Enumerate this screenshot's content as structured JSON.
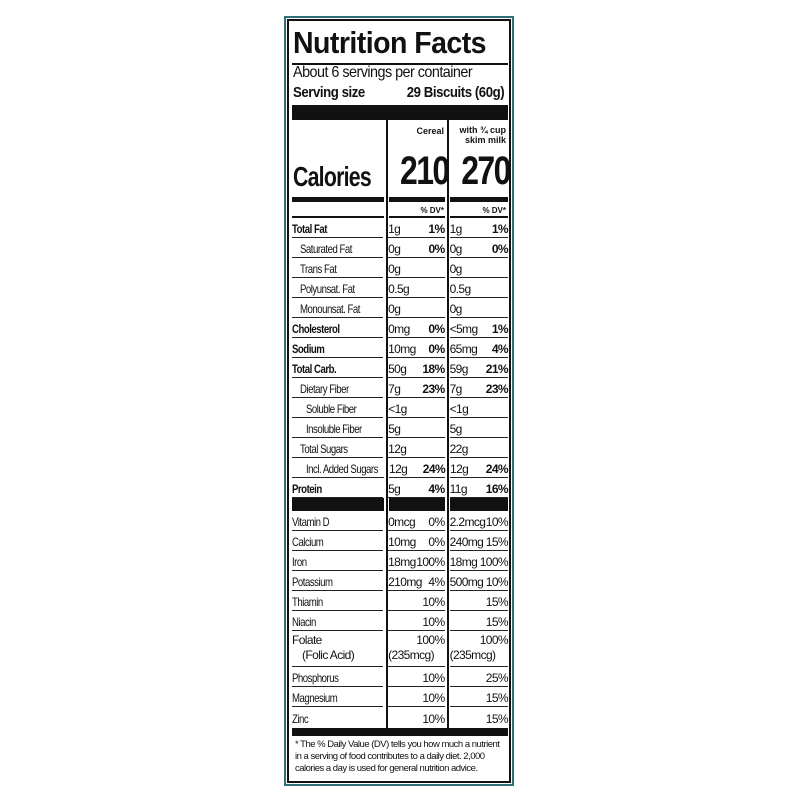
{
  "label": {
    "title": "Nutrition Facts",
    "servings_per_container": "About 6 servings per container",
    "serving_size_label": "Serving size",
    "serving_size_value": "29 Biscuits (60g)",
    "columns": [
      "Cereal",
      "with ¾ cup skim milk"
    ],
    "calories_label": "Calories",
    "calories": [
      "210",
      "270"
    ],
    "dv_header": "% DV*",
    "nutrients": [
      {
        "name": "Total Fat",
        "bold": true,
        "indent": 0,
        "cereal": "1g",
        "cereal_dv": "1%",
        "milk": "1g",
        "milk_dv": "1%"
      },
      {
        "name": "Saturated Fat",
        "indent": 1,
        "cereal": "0g",
        "cereal_dv": "0%",
        "milk": "0g",
        "milk_dv": "0%"
      },
      {
        "name": "Trans Fat",
        "indent": 1,
        "cereal": "0g",
        "cereal_dv": "",
        "milk": "0g",
        "milk_dv": ""
      },
      {
        "name": "Polyunsat. Fat",
        "indent": 1,
        "cereal": "0.5g",
        "cereal_dv": "",
        "milk": "0.5g",
        "milk_dv": ""
      },
      {
        "name": "Monounsat. Fat",
        "indent": 1,
        "cereal": "0g",
        "cereal_dv": "",
        "milk": "0g",
        "milk_dv": ""
      },
      {
        "name": "Cholesterol",
        "bold": true,
        "indent": 0,
        "cereal": "0mg",
        "cereal_dv": "0%",
        "milk": "<5mg",
        "milk_dv": "1%"
      },
      {
        "name": "Sodium",
        "bold": true,
        "indent": 0,
        "cereal": "10mg",
        "cereal_dv": "0%",
        "milk": "65mg",
        "milk_dv": "4%"
      },
      {
        "name": "Total Carb.",
        "bold": true,
        "indent": 0,
        "cereal": "50g",
        "cereal_dv": "18%",
        "milk": "59g",
        "milk_dv": "21%"
      },
      {
        "name": "Dietary Fiber",
        "indent": 1,
        "cereal": "7g",
        "cereal_dv": "23%",
        "milk": "7g",
        "milk_dv": "23%"
      },
      {
        "name": "Soluble Fiber",
        "indent": 2,
        "cereal": "<1g",
        "cereal_dv": "",
        "milk": "<1g",
        "milk_dv": ""
      },
      {
        "name": "Insoluble Fiber",
        "indent": 2,
        "cereal": "5g",
        "cereal_dv": "",
        "milk": "5g",
        "milk_dv": ""
      },
      {
        "name": "Total Sugars",
        "indent": 1,
        "cereal": "12g",
        "cereal_dv": "",
        "milk": "22g",
        "milk_dv": ""
      },
      {
        "name": "Incl. Added Sugars",
        "indent": 2,
        "cereal": "12g",
        "cereal_dv": "24%",
        "milk": "12g",
        "milk_dv": "24%"
      },
      {
        "name": "Protein",
        "bold": true,
        "indent": 0,
        "cereal": "5g",
        "cereal_dv": "4%",
        "milk": "11g",
        "milk_dv": "16%"
      }
    ],
    "vitamins": [
      {
        "name": "Vitamin D",
        "cereal": "0mcg",
        "cereal_dv": "0%",
        "milk": "2.2mcg",
        "milk_dv": "10%"
      },
      {
        "name": "Calcium",
        "cereal": "10mg",
        "cereal_dv": "0%",
        "milk": "240mg",
        "milk_dv": "15%"
      },
      {
        "name": "Iron",
        "cereal": "18mg",
        "cereal_dv": "100%",
        "milk": "18mg",
        "milk_dv": "100%"
      },
      {
        "name": "Potassium",
        "cereal": "210mg",
        "cereal_dv": "4%",
        "milk": "500mg",
        "milk_dv": "10%"
      },
      {
        "name": "Thiamin",
        "cereal": "",
        "cereal_dv": "10%",
        "milk": "",
        "milk_dv": "15%"
      },
      {
        "name": "Niacin",
        "cereal": "",
        "cereal_dv": "10%",
        "milk": "",
        "milk_dv": "15%"
      }
    ],
    "folate": {
      "name": "Folate",
      "sub": "(Folic Acid)",
      "cereal": "(235mcg)",
      "cereal_dv": "100%",
      "milk": "(235mcg)",
      "milk_dv": "100%"
    },
    "minerals": [
      {
        "name": "Phosphorus",
        "cereal": "",
        "cereal_dv": "10%",
        "milk": "",
        "milk_dv": "25%"
      },
      {
        "name": "Magnesium",
        "cereal": "",
        "cereal_dv": "10%",
        "milk": "",
        "milk_dv": "15%"
      },
      {
        "name": "Zinc",
        "cereal": "",
        "cereal_dv": "10%",
        "milk": "",
        "milk_dv": "15%"
      }
    ],
    "footnote": "* The % Daily Value (DV) tells you how much a nutrient in a serving of food contributes to a daily diet. 2,000 calories a day is used for general nutrition advice.",
    "colors": {
      "outer_border": "#2f6f7c",
      "ink": "#111111"
    }
  }
}
